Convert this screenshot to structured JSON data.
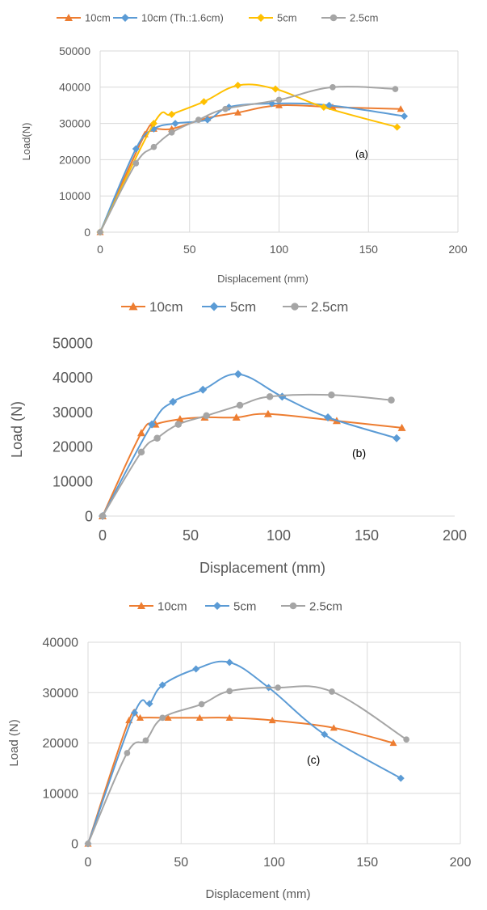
{
  "chart_data": [
    {
      "type": "line",
      "panel_label": "(a)",
      "xlabel": "Displacement (mm)",
      "ylabel": "Load(N)",
      "xlim": [
        0,
        200
      ],
      "ylim": [
        0,
        50000
      ],
      "xticks": [
        "0",
        "50",
        "100",
        "150",
        "200"
      ],
      "yticks": [
        "0",
        "10000",
        "20000",
        "30000",
        "40000",
        "50000"
      ],
      "grid": true,
      "legend_position": "top",
      "series": [
        {
          "name": "10cm",
          "color": "#ED7D31",
          "marker": "triangle",
          "x": [
            0,
            25,
            30,
            40,
            60,
            77,
            100,
            130,
            168
          ],
          "y": [
            0,
            27000,
            28500,
            28500,
            31500,
            33000,
            35000,
            34500,
            34000
          ]
        },
        {
          "name": "10cm (Th.:1.6cm)",
          "color": "#5B9BD5",
          "marker": "diamond",
          "x": [
            0,
            20,
            30,
            42,
            60,
            72,
            96,
            128,
            170
          ],
          "y": [
            0,
            23000,
            28500,
            30000,
            31000,
            34500,
            35500,
            35000,
            32000
          ]
        },
        {
          "name": "5cm",
          "color": "#FFC000",
          "marker": "diamond",
          "x": [
            0,
            30,
            40,
            58,
            77,
            98,
            125,
            166
          ],
          "y": [
            0,
            30000,
            32500,
            36000,
            40500,
            39500,
            34500,
            29000
          ]
        },
        {
          "name": "2.5cm",
          "color": "#A5A5A5",
          "marker": "circle",
          "x": [
            0,
            20,
            30,
            40,
            55,
            70,
            100,
            130,
            165
          ],
          "y": [
            0,
            19000,
            23500,
            27500,
            31000,
            34000,
            36500,
            40000,
            39500
          ]
        }
      ]
    },
    {
      "type": "line",
      "panel_label": "(b)",
      "xlabel": "Displacement (mm)",
      "ylabel": "Load (N)",
      "xlim": [
        0,
        200
      ],
      "ylim": [
        0,
        50000
      ],
      "xticks": [
        "0",
        "50",
        "100",
        "150",
        "200"
      ],
      "yticks": [
        "0",
        "10000",
        "20000",
        "30000",
        "40000",
        "50000"
      ],
      "grid": false,
      "legend_position": "top",
      "series": [
        {
          "name": "10cm",
          "color": "#ED7D31",
          "marker": "triangle",
          "x": [
            0,
            22,
            30,
            44,
            58,
            76,
            94,
            133,
            170
          ],
          "y": [
            0,
            24000,
            26500,
            28000,
            28500,
            28500,
            29500,
            27500,
            25500
          ]
        },
        {
          "name": "5cm",
          "color": "#5B9BD5",
          "marker": "diamond",
          "x": [
            0,
            28,
            40,
            57,
            77,
            102,
            128,
            167
          ],
          "y": [
            0,
            26500,
            33000,
            36500,
            41000,
            34500,
            28500,
            22500
          ]
        },
        {
          "name": "2.5cm",
          "color": "#A5A5A5",
          "marker": "circle",
          "x": [
            0,
            22,
            31,
            43,
            59,
            78,
            95,
            130,
            164
          ],
          "y": [
            0,
            18500,
            22500,
            26500,
            29000,
            32000,
            34500,
            35000,
            33500
          ]
        }
      ]
    },
    {
      "type": "line",
      "panel_label": "(c)",
      "xlabel": "Displacement (mm)",
      "ylabel": "Load (N)",
      "xlim": [
        0,
        200
      ],
      "ylim": [
        0,
        40000
      ],
      "xticks": [
        "0",
        "50",
        "100",
        "150",
        "200"
      ],
      "yticks": [
        "0",
        "10000",
        "20000",
        "30000",
        "40000"
      ],
      "grid": true,
      "legend_position": "top",
      "series": [
        {
          "name": "10cm",
          "color": "#ED7D31",
          "marker": "triangle",
          "x": [
            0,
            22,
            28,
            43,
            60,
            76,
            99,
            132,
            164
          ],
          "y": [
            0,
            24500,
            25000,
            25000,
            25000,
            25000,
            24500,
            23000,
            20000
          ]
        },
        {
          "name": "5cm",
          "color": "#5B9BD5",
          "marker": "diamond",
          "x": [
            0,
            25,
            33,
            40,
            58,
            76,
            97,
            127,
            168
          ],
          "y": [
            0,
            26000,
            27800,
            31500,
            34700,
            36000,
            31000,
            21700,
            13000
          ]
        },
        {
          "name": "2.5cm",
          "color": "#A5A5A5",
          "marker": "circle",
          "x": [
            0,
            21,
            31,
            40,
            61,
            76,
            102,
            131,
            171
          ],
          "y": [
            0,
            18000,
            20500,
            25000,
            27700,
            30300,
            31000,
            30200,
            20700
          ]
        }
      ]
    }
  ]
}
